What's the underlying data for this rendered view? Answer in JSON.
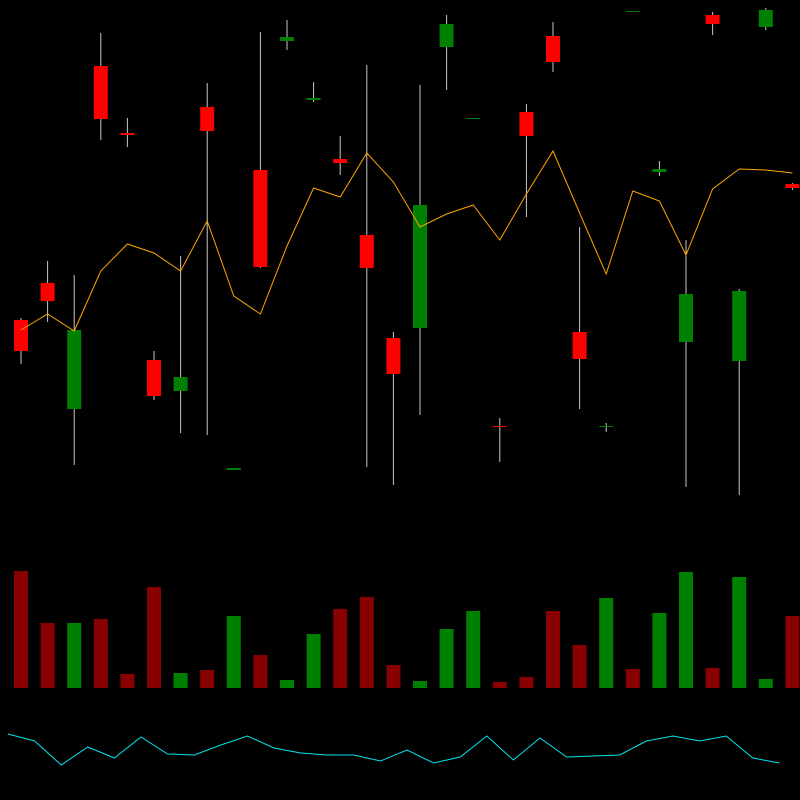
{
  "chart_data": [
    {
      "type": "candlestick",
      "up_color": "#008000",
      "down_color": "#ff0000",
      "wick_color": "#c8c8c8",
      "ylim": [
        0,
        800
      ],
      "open": [
        480,
        517,
        391,
        734,
        667,
        440,
        409,
        693,
        330,
        630,
        759,
        700,
        641,
        565,
        462,
        472,
        753,
        681,
        374,
        688,
        764,
        468,
        373,
        788,
        628,
        458,
        785,
        439,
        773,
        616
      ],
      "high": [
        482,
        539,
        525,
        767,
        682,
        449,
        544,
        717,
        332,
        768,
        780,
        718,
        664,
        735,
        468,
        715,
        785,
        682,
        382,
        696,
        778,
        573,
        377,
        789,
        639,
        560,
        788,
        511,
        792,
        617
      ],
      "low": [
        436,
        478,
        335,
        660,
        653,
        400,
        367,
        365,
        330,
        532,
        750,
        698,
        625,
        333,
        315,
        385,
        710,
        681,
        338,
        583,
        728,
        391,
        368,
        788,
        624,
        313,
        765,
        305,
        770,
        610
      ],
      "close": [
        449,
        499,
        470,
        681,
        665,
        404,
        423,
        669,
        332,
        533,
        763,
        702,
        637,
        532,
        426,
        595,
        776,
        682,
        373,
        664,
        738,
        441,
        374,
        789,
        631,
        506,
        776,
        509,
        790,
        612
      ]
    },
    {
      "type": "line",
      "color": "#ffa500",
      "ylim": [
        0,
        800
      ],
      "values": [
        470,
        486,
        469,
        529,
        556,
        547,
        529,
        579,
        504,
        486,
        554,
        612,
        603,
        647,
        618,
        573,
        586,
        595,
        560,
        606,
        649,
        587,
        526,
        609,
        599,
        545,
        611,
        631,
        630,
        627
      ]
    },
    {
      "type": "bar",
      "ylim": [
        0,
        120
      ],
      "values": [
        117,
        65,
        65,
        69,
        14,
        101,
        15,
        18,
        72,
        33,
        8,
        54,
        79,
        91,
        23,
        7,
        59,
        77,
        6,
        11,
        77,
        43,
        90,
        19,
        75,
        116,
        20,
        111,
        9,
        72
      ],
      "colors": [
        "#880000",
        "#880000",
        "#008000",
        "#880000",
        "#880000",
        "#880000",
        "#008000",
        "#880000",
        "#008000",
        "#880000",
        "#008000",
        "#008000",
        "#880000",
        "#880000",
        "#880000",
        "#008000",
        "#008000",
        "#008000",
        "#880000",
        "#880000",
        "#880000",
        "#880000",
        "#008000",
        "#880000",
        "#008000",
        "#008000",
        "#880000",
        "#008000",
        "#008000",
        "#880000"
      ]
    },
    {
      "type": "line",
      "color": "#00e5ee",
      "ylim": [
        0,
        800
      ],
      "values": [
        66,
        59,
        35,
        53,
        42,
        63,
        46,
        45,
        55,
        64,
        52,
        47,
        45,
        45,
        39,
        50,
        37,
        43,
        64,
        40,
        62,
        43,
        44,
        45,
        59,
        64,
        59,
        64,
        42,
        37
      ]
    }
  ]
}
